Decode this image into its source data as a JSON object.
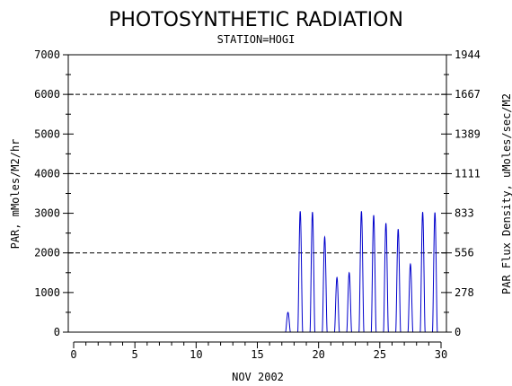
{
  "chart_data": {
    "type": "line",
    "title": "PHOTOSYNTHETIC RADIATION",
    "subtitle": "STATION=HOGI",
    "xlabel": "NOV 2002",
    "ylabel": "PAR, mMoles/M2/hr",
    "y2label": "PAR Flux Density, uMoles/sec/M2",
    "xlim": [
      0,
      30
    ],
    "ylim": [
      0,
      7000
    ],
    "x_ticks": [
      0,
      5,
      10,
      15,
      20,
      25,
      30
    ],
    "y_ticks": [
      0,
      1000,
      2000,
      3000,
      4000,
      5000,
      6000,
      7000
    ],
    "y2_ticks": [
      "0",
      "278",
      "556",
      "833",
      "1111",
      "1389",
      "1667",
      "1944"
    ],
    "gridlines_y": [
      2000,
      4000,
      6000
    ],
    "grid_style": "dashed",
    "line_color": "#0000cc",
    "series": [
      {
        "daily_peaks": [
          {
            "day": 17.5,
            "peak": 500
          },
          {
            "day": 18.5,
            "peak": 3050
          },
          {
            "day": 19.5,
            "peak": 3030
          },
          {
            "day": 20.5,
            "peak": 2400
          },
          {
            "day": 21.5,
            "peak": 1380
          },
          {
            "day": 22.5,
            "peak": 1500
          },
          {
            "day": 23.5,
            "peak": 3050
          },
          {
            "day": 24.5,
            "peak": 2950
          },
          {
            "day": 25.5,
            "peak": 2750
          },
          {
            "day": 26.5,
            "peak": 2600
          },
          {
            "day": 27.5,
            "peak": 1720
          },
          {
            "day": 28.5,
            "peak": 3030
          },
          {
            "day": 29.5,
            "peak": 3020
          }
        ]
      }
    ]
  }
}
